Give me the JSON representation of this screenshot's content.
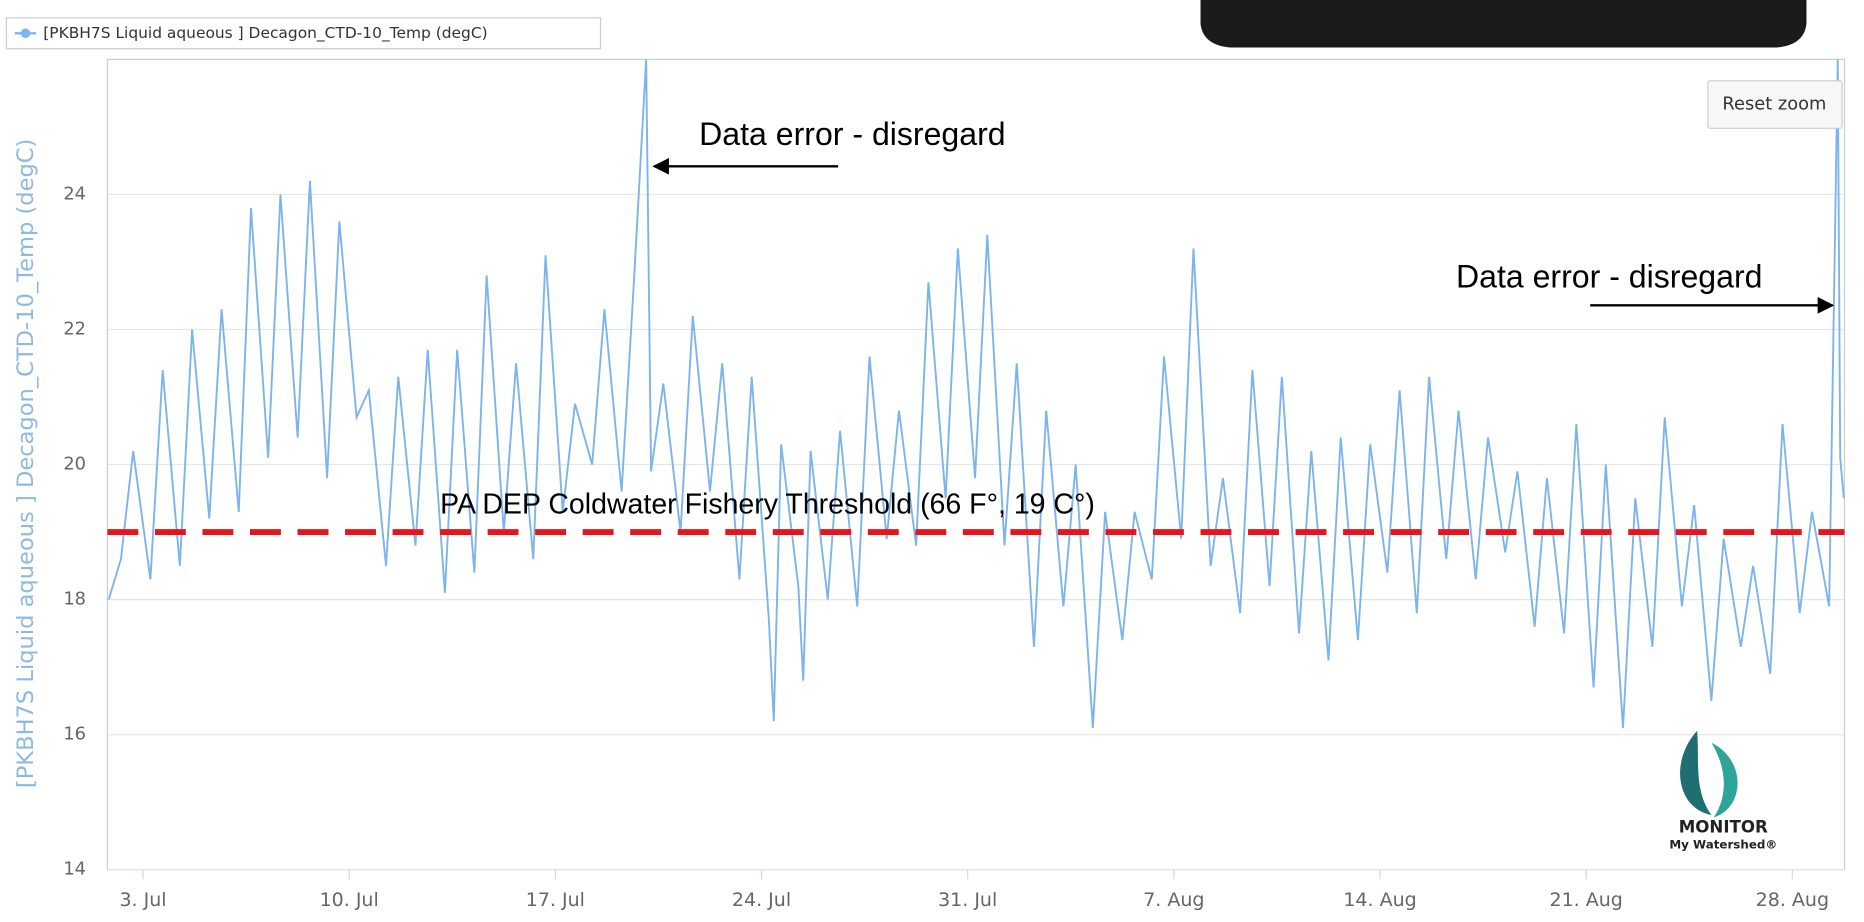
{
  "chart_data": {
    "type": "line",
    "legend": "[PKBH7S Liquid aqueous ] Decagon_CTD-10_Temp (degC)",
    "ylabel": "[PKBH7S Liquid aqueous ] Decagon_CTD-10_Temp (degC)",
    "reset_button": "Reset zoom",
    "logo": {
      "name": "MONITOR",
      "tagline": "My Watershed®"
    },
    "annotations": [
      "Data error - disregard",
      "Data error - disregard"
    ],
    "threshold": {
      "label": "PA DEP Coldwater Fishery Threshold (66 F°, 19 C°)",
      "value": 19,
      "color": "#e8141b"
    },
    "grid": true,
    "ylim": [
      14,
      26
    ],
    "yticks": [
      14,
      16,
      18,
      20,
      22,
      24
    ],
    "xlim": [
      "07-01 19:00",
      "08-29 18:30"
    ],
    "xticks": [
      {
        "value": "07-03 00:00",
        "label": "3. Jul"
      },
      {
        "value": "07-10 00:00",
        "label": "10. Jul"
      },
      {
        "value": "07-17 00:00",
        "label": "17. Jul"
      },
      {
        "value": "07-24 00:00",
        "label": "24. Jul"
      },
      {
        "value": "07-31 00:00",
        "label": "31. Jul"
      },
      {
        "value": "08-07 00:00",
        "label": "7. Aug"
      },
      {
        "value": "08-14 00:00",
        "label": "14. Aug"
      },
      {
        "value": "08-21 00:00",
        "label": "21. Aug"
      },
      {
        "value": "08-28 00:00",
        "label": "28. Aug"
      }
    ],
    "x": [
      "07-01 20:00",
      "07-02 06:00",
      "07-02 16:00",
      "07-03 06:00",
      "07-03 16:00",
      "07-04 06:00",
      "07-04 16:00",
      "07-05 06:00",
      "07-05 16:00",
      "07-06 06:00",
      "07-06 16:00",
      "07-07 06:00",
      "07-07 16:00",
      "07-08 06:00",
      "07-08 16:00",
      "07-09 06:00",
      "07-09 16:00",
      "07-10 06:00",
      "07-10 16:00",
      "07-11 06:00",
      "07-11 16:00",
      "07-12 06:00",
      "07-12 16:00",
      "07-13 06:00",
      "07-13 16:00",
      "07-14 06:00",
      "07-14 16:00",
      "07-15 06:00",
      "07-15 16:00",
      "07-16 06:00",
      "07-16 16:00",
      "07-17 06:00",
      "07-17 16:00",
      "07-18 06:00",
      "07-18 16:00",
      "07-19 06:00",
      "07-19 16:00",
      "07-20 02:00",
      "07-20 06:00",
      "07-20 16:00",
      "07-21 06:00",
      "07-21 16:00",
      "07-22 06:00",
      "07-22 16:00",
      "07-23 06:00",
      "07-23 16:00",
      "07-24 06:00",
      "07-24 10:00",
      "07-24 16:00",
      "07-25 06:00",
      "07-25 10:00",
      "07-25 16:00",
      "07-26 06:00",
      "07-26 16:00",
      "07-27 06:00",
      "07-27 16:00",
      "07-28 06:00",
      "07-28 16:00",
      "07-29 06:00",
      "07-29 16:00",
      "07-30 06:00",
      "07-30 16:00",
      "07-31 06:00",
      "07-31 16:00",
      "08-01 06:00",
      "08-01 16:00",
      "08-02 06:00",
      "08-02 16:00",
      "08-03 06:00",
      "08-03 16:00",
      "08-04 06:00",
      "08-04 16:00",
      "08-05 06:00",
      "08-05 16:00",
      "08-06 06:00",
      "08-06 16:00",
      "08-07 06:00",
      "08-07 16:00",
      "08-08 06:00",
      "08-08 16:00",
      "08-09 06:00",
      "08-09 16:00",
      "08-10 06:00",
      "08-10 16:00",
      "08-11 06:00",
      "08-11 16:00",
      "08-12 06:00",
      "08-12 16:00",
      "08-13 06:00",
      "08-13 16:00",
      "08-14 06:00",
      "08-14 16:00",
      "08-15 06:00",
      "08-15 16:00",
      "08-16 06:00",
      "08-16 16:00",
      "08-17 06:00",
      "08-17 16:00",
      "08-18 06:00",
      "08-18 16:00",
      "08-19 06:00",
      "08-19 16:00",
      "08-20 06:00",
      "08-20 16:00",
      "08-21 06:00",
      "08-21 16:00",
      "08-22 06:00",
      "08-22 16:00",
      "08-23 06:00",
      "08-23 16:00",
      "08-24 06:00",
      "08-24 16:00",
      "08-25 06:00",
      "08-25 16:00",
      "08-26 06:00",
      "08-26 16:00",
      "08-27 06:00",
      "08-27 16:00",
      "08-28 06:00",
      "08-28 16:00",
      "08-29 06:00",
      "08-29 13:00",
      "08-29 15:00",
      "08-29 18:00"
    ],
    "series": [
      {
        "name": "[PKBH7S Liquid aqueous ] Decagon_CTD-10_Temp (degC)",
        "color": "#7cb5ec",
        "values": [
          18.0,
          18.6,
          20.2,
          18.3,
          21.4,
          18.5,
          22.0,
          19.2,
          22.3,
          19.3,
          23.8,
          20.1,
          24.0,
          20.4,
          24.2,
          19.8,
          23.6,
          20.7,
          21.1,
          18.5,
          21.3,
          18.8,
          21.7,
          18.1,
          21.7,
          18.4,
          22.8,
          19.0,
          21.5,
          18.6,
          23.1,
          19.3,
          20.9,
          20.0,
          22.3,
          19.6,
          22.7,
          26,
          19.9,
          21.2,
          19.0,
          22.2,
          19.6,
          21.5,
          18.3,
          21.3,
          17.7,
          16.2,
          20.3,
          18.2,
          16.8,
          20.2,
          18.0,
          20.5,
          17.9,
          21.6,
          18.9,
          20.8,
          18.8,
          22.7,
          19.5,
          23.2,
          19.8,
          23.4,
          18.8,
          21.5,
          17.3,
          20.8,
          17.9,
          20.0,
          16.1,
          19.3,
          17.4,
          19.3,
          18.3,
          21.6,
          18.9,
          23.2,
          18.5,
          19.8,
          17.8,
          21.4,
          18.2,
          21.3,
          17.5,
          20.2,
          17.1,
          20.4,
          17.4,
          20.3,
          18.4,
          21.1,
          17.8,
          21.3,
          18.6,
          20.8,
          18.3,
          20.4,
          18.7,
          19.9,
          17.6,
          19.8,
          17.5,
          20.6,
          16.7,
          20.0,
          16.1,
          19.5,
          17.3,
          20.7,
          17.9,
          19.4,
          16.5,
          18.9,
          17.3,
          18.5,
          16.9,
          20.6,
          17.8,
          19.3,
          17.9,
          26,
          20.1,
          19.5
        ]
      }
    ]
  }
}
